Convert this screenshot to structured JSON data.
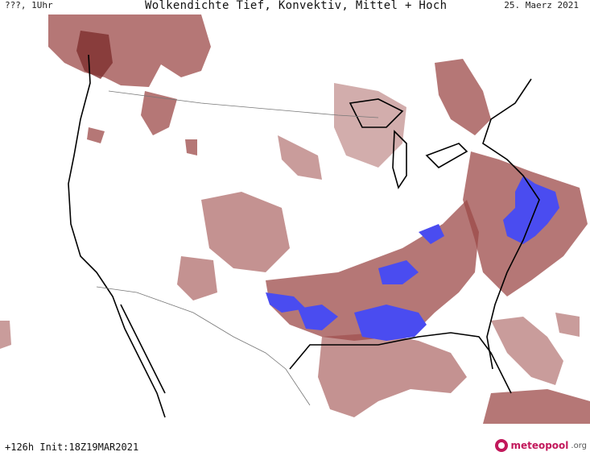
{
  "header": {
    "left": "???, 1Uhr",
    "title": "Wolkendichte  Tief, Konvektiv, Mittel + Hoch",
    "date": "25. Maerz 2021"
  },
  "footer": {
    "init": "+126h Init:18Z19MAR2021",
    "logo_text": "meteopool",
    "logo_tld": ".org"
  },
  "colors": {
    "cloud_dark": "#8a3a3a",
    "cloud_mid": "#a35a58",
    "cloud_light": "#c99a96",
    "convective": "#4a4cf0",
    "coast": "#000000",
    "border": "#777777"
  },
  "map": {
    "type": "cloud-density-forecast",
    "region": "contiguous-us"
  }
}
